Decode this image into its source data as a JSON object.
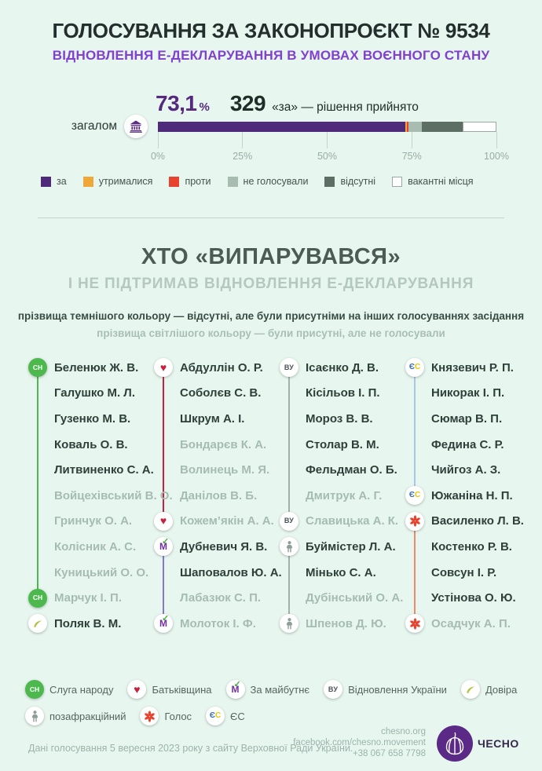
{
  "header": {
    "title": "ГОЛОСУВАННЯ ЗА ЗАКОНОПРОЄКТ № 9534",
    "subtitle": "ВІДНОВЛЕННЯ Е-ДЕКЛАРУВАННЯ В УМОВАХ ВОЄННОГО СТАНУ"
  },
  "summary": {
    "row_label": "загалом",
    "percent": "73,1",
    "percent_unit": "%",
    "votes": "329",
    "caption": "«за» — рішення прийнято",
    "axis_ticks": [
      "0%",
      "25%",
      "50%",
      "75%",
      "100%"
    ]
  },
  "chart_data": {
    "type": "bar",
    "stacked": true,
    "orientation": "horizontal",
    "title": "ГОЛОСУВАННЯ ЗА ЗАКОНОПРОЄКТ № 9534",
    "categories": [
      "загалом"
    ],
    "xlim": [
      0,
      100
    ],
    "x_tick_labels": [
      "0%",
      "25%",
      "50%",
      "75%",
      "100%"
    ],
    "grid": false,
    "legend_position": "bottom",
    "annotations": [
      "73,1 %",
      "329 «за» — рішення прийнято"
    ],
    "series": [
      {
        "name": "за",
        "values": [
          73.1
        ],
        "color": "#4f2a7a"
      },
      {
        "name": "утрималися",
        "values": [
          0.5
        ],
        "color": "#f0a73a"
      },
      {
        "name": "проти",
        "values": [
          0.4
        ],
        "color": "#e8432e"
      },
      {
        "name": "не голосували",
        "values": [
          4.0
        ],
        "color": "#a9bcb1"
      },
      {
        "name": "відсутні",
        "values": [
          12.0
        ],
        "color": "#5d6e64"
      },
      {
        "name": "вакантні місця",
        "values": [
          10.0
        ],
        "color": "#ffffff",
        "border": "#9aa8a1"
      }
    ]
  },
  "section": {
    "heading": "ХТО «ВИПАРУВАВСЯ»",
    "subheading": "І НЕ ПІДТРИМАВ ВІДНОВЛЕННЯ Е-ДЕКЛАРУВАННЯ",
    "note_dark": "прізвища темнішого кольору — відсутні, але були присутніми на інших голосуваннях засідання",
    "note_light": "прізвища світлішого кольору — були присутні, але не голосували"
  },
  "deputies": {
    "columns": [
      {
        "connectors": [
          {
            "from": 0,
            "to": 9,
            "color": "#4cb84f"
          }
        ],
        "items": [
          {
            "name": "Беленюк Ж. В.",
            "tone": "dark",
            "party": "sn"
          },
          {
            "name": "Галушко М. Л.",
            "tone": "dark"
          },
          {
            "name": "Гузенко М. В.",
            "tone": "dark"
          },
          {
            "name": "Коваль О. В.",
            "tone": "dark"
          },
          {
            "name": "Литвиненко С. А.",
            "tone": "dark"
          },
          {
            "name": "Войцехівський В. О.",
            "tone": "light"
          },
          {
            "name": "Гринчук О. А.",
            "tone": "light"
          },
          {
            "name": "Колісник А. С.",
            "tone": "light"
          },
          {
            "name": "Куницький О. О.",
            "tone": "light"
          },
          {
            "name": "Марчук І. П.",
            "tone": "light",
            "party": "sn"
          },
          {
            "name": "Поляк В. М.",
            "tone": "dark",
            "party": "dovira"
          }
        ]
      },
      {
        "connectors": [
          {
            "from": 0,
            "to": 6,
            "color": "#c82045"
          },
          {
            "from": 7,
            "to": 10,
            "color": "#8678cc"
          }
        ],
        "items": [
          {
            "name": "Абдуллін О. Р.",
            "tone": "dark",
            "party": "bat"
          },
          {
            "name": "Соболєв С. В.",
            "tone": "dark"
          },
          {
            "name": "Шкрум А. І.",
            "tone": "dark"
          },
          {
            "name": "Бондарєв К. А.",
            "tone": "light"
          },
          {
            "name": "Волинець М. Я.",
            "tone": "light"
          },
          {
            "name": "Данілов В. Б.",
            "tone": "light"
          },
          {
            "name": "Кожем’якін А. А.",
            "tone": "light",
            "party": "bat"
          },
          {
            "name": "Дубневич Я. В.",
            "tone": "dark",
            "party": "zm"
          },
          {
            "name": "Шаповалов Ю. А.",
            "tone": "dark"
          },
          {
            "name": "Лабазюк С. П.",
            "tone": "light"
          },
          {
            "name": "Молоток І. Ф.",
            "tone": "light",
            "party": "zm"
          }
        ]
      },
      {
        "connectors": [
          {
            "from": 0,
            "to": 6,
            "color": "#a3b2ab"
          },
          {
            "from": 7,
            "to": 10,
            "color": "#a3b2ab"
          }
        ],
        "items": [
          {
            "name": "Ісаєнко Д. В.",
            "tone": "dark",
            "party": "vu"
          },
          {
            "name": "Кісільов І. П.",
            "tone": "dark"
          },
          {
            "name": "Мороз В. В.",
            "tone": "dark"
          },
          {
            "name": "Столар В. М.",
            "tone": "dark"
          },
          {
            "name": "Фельдман О. Б.",
            "tone": "dark"
          },
          {
            "name": "Дмитрук А. Г.",
            "tone": "light"
          },
          {
            "name": "Славицька А. К.",
            "tone": "light",
            "party": "vu"
          },
          {
            "name": "Буймістер Л. А.",
            "tone": "dark",
            "party": "nf"
          },
          {
            "name": "Мінько С. А.",
            "tone": "dark"
          },
          {
            "name": "Дубінський О. А.",
            "tone": "light"
          },
          {
            "name": "Шпенов Д. Ю.",
            "tone": "light",
            "party": "nf"
          }
        ]
      },
      {
        "connectors": [
          {
            "from": 0,
            "to": 5,
            "color": "#a9c6e8"
          },
          {
            "from": 6,
            "to": 10,
            "color": "#ef8a66"
          }
        ],
        "items": [
          {
            "name": "Князевич Р. П.",
            "tone": "dark",
            "party": "es"
          },
          {
            "name": "Никорак І. П.",
            "tone": "dark"
          },
          {
            "name": "Сюмар В. П.",
            "tone": "dark"
          },
          {
            "name": "Федина С. Р.",
            "tone": "dark"
          },
          {
            "name": "Чийгоз А. З.",
            "tone": "dark"
          },
          {
            "name": "Южаніна Н. П.",
            "tone": "dark",
            "party": "es"
          },
          {
            "name": "Василенко Л. В.",
            "tone": "dark",
            "party": "golos"
          },
          {
            "name": "Костенко Р. В.",
            "tone": "dark"
          },
          {
            "name": "Совсун І. Р.",
            "tone": "dark"
          },
          {
            "name": "Устінова О. Ю.",
            "tone": "dark"
          },
          {
            "name": "Осадчук А. П.",
            "tone": "light",
            "party": "golos"
          }
        ]
      }
    ]
  },
  "party_legend": {
    "rows": [
      [
        {
          "key": "sn",
          "label": "Слуга народу"
        },
        {
          "key": "bat",
          "label": "Батьківщина"
        },
        {
          "key": "zm",
          "label": "За майбутнє"
        },
        {
          "key": "vu",
          "label": "Відновлення України"
        },
        {
          "key": "dovira",
          "label": "Довіра"
        }
      ],
      [
        {
          "key": "nf",
          "label": "позафракційний"
        },
        {
          "key": "golos",
          "label": "Голос"
        },
        {
          "key": "es",
          "label": "ЄС"
        }
      ]
    ]
  },
  "footer": {
    "source": "Дані голосування 5 вересня 2023 року з сайту Верховної Ради України.",
    "contacts": [
      "chesno.org",
      "facebook.com/chesno.movement",
      "+38 067 658 7798"
    ],
    "brand": "ЧЕСНО"
  }
}
